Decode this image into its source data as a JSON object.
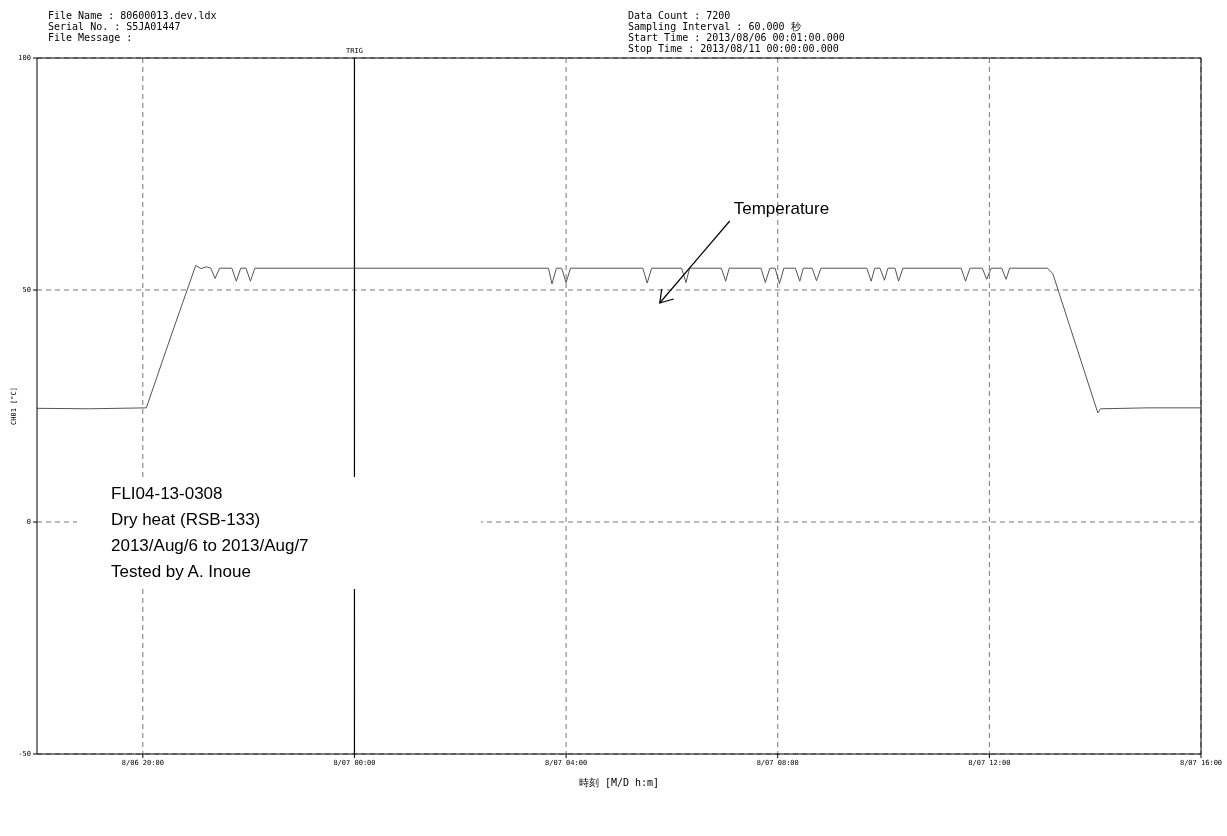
{
  "chart_data": {
    "type": "line",
    "xlabel": "時刻 [M/D h:m]",
    "ylabel": "CH01 [°C]",
    "xlim": [
      "2013-08-06T18:00",
      "2013-08-07T16:00"
    ],
    "xticks": [
      {
        "value": "2013-08-06T20:00",
        "label": "8/06 20:00"
      },
      {
        "value": "2013-08-07T00:00",
        "label": "8/07 00:00"
      },
      {
        "value": "2013-08-07T04:00",
        "label": "8/07 04:00"
      },
      {
        "value": "2013-08-07T08:00",
        "label": "8/07 08:00"
      },
      {
        "value": "2013-08-07T12:00",
        "label": "8/07 12:00"
      },
      {
        "value": "2013-08-07T16:00",
        "label": "8/07 16:00"
      }
    ],
    "ylim": [
      -50,
      100
    ],
    "yticks": [
      -50,
      0,
      50,
      100
    ],
    "grid": true,
    "line_style": "solid",
    "marker": "none",
    "ref_lines": [
      {
        "axis": "x",
        "value": "2013-08-07T00:00",
        "label": "TRIG",
        "color": "#000000",
        "line_style": "solid"
      }
    ],
    "annotations": [
      "File Name : 80600013.dev.ldx",
      "Serial No. : S5JA01447",
      "File Message :",
      "Data Count : 7200",
      "Sampling Interval : 60.000 秒",
      "Start Time : 2013/08/06 00:01:00.000",
      "Stop Time : 2013/08/11 00:00:00.000",
      "FLI04-13-0308",
      "Dry heat (RSB-133)",
      "2013/Aug/6 to 2013/Aug/7",
      "Tested by A. Inoue",
      "Temperature"
    ],
    "series": [
      {
        "color": "#555555",
        "x": [
          "2013-08-06T18:00",
          "2013-08-06T19:00",
          "2013-08-06T20:04",
          "2013-08-06T20:30",
          "2013-08-06T21:00",
          "2013-08-06T21:06",
          "2013-08-06T21:12",
          "2013-08-06T21:17",
          "2013-08-06T21:22",
          "2013-08-06T21:27",
          "2013-08-06T21:41",
          "2013-08-06T21:46",
          "2013-08-06T21:51",
          "2013-08-06T21:57",
          "2013-08-06T22:02",
          "2013-08-06T22:07",
          "2013-08-07T00:00",
          "2013-08-07T03:40",
          "2013-08-07T03:44",
          "2013-08-07T03:49",
          "2013-08-07T03:55",
          "2013-08-07T04:00",
          "2013-08-07T04:05",
          "2013-08-07T05:27",
          "2013-08-07T05:32",
          "2013-08-07T05:37",
          "2013-08-07T06:11",
          "2013-08-07T06:16",
          "2013-08-07T06:20",
          "2013-08-07T06:56",
          "2013-08-07T07:01",
          "2013-08-07T07:05",
          "2013-08-07T07:41",
          "2013-08-07T07:46",
          "2013-08-07T07:51",
          "2013-08-07T07:57",
          "2013-08-07T08:02",
          "2013-08-07T08:07",
          "2013-08-07T08:20",
          "2013-08-07T08:25",
          "2013-08-07T08:29",
          "2013-08-07T08:39",
          "2013-08-07T08:44",
          "2013-08-07T08:49",
          "2013-08-07T09:41",
          "2013-08-07T09:46",
          "2013-08-07T09:50",
          "2013-08-07T09:56",
          "2013-08-07T10:01",
          "2013-08-07T10:05",
          "2013-08-07T10:13",
          "2013-08-07T10:17",
          "2013-08-07T10:22",
          "2013-08-07T11:28",
          "2013-08-07T11:33",
          "2013-08-07T11:38",
          "2013-08-07T11:52",
          "2013-08-07T11:57",
          "2013-08-07T12:02",
          "2013-08-07T12:14",
          "2013-08-07T12:19",
          "2013-08-07T12:23",
          "2013-08-07T13:06",
          "2013-08-07T13:12",
          "2013-08-07T14:03",
          "2013-08-07T14:06",
          "2013-08-07T15:00",
          "2013-08-07T16:00"
        ],
        "values": [
          24.5,
          24.4,
          24.6,
          39,
          55.3,
          54.6,
          55,
          54.7,
          52.5,
          54.7,
          54.7,
          51.9,
          54.7,
          54.7,
          51.9,
          54.7,
          54.7,
          54.7,
          51.3,
          54.7,
          54.7,
          51.6,
          54.7,
          54.7,
          51.5,
          54.7,
          54.7,
          51.6,
          54.7,
          54.7,
          51.9,
          54.7,
          54.7,
          51.6,
          54.7,
          54.7,
          51.4,
          54.7,
          54.7,
          51.9,
          54.7,
          54.7,
          52.0,
          54.7,
          54.7,
          51.9,
          54.7,
          54.7,
          52.1,
          54.7,
          54.7,
          51.9,
          54.7,
          54.7,
          51.9,
          54.7,
          54.7,
          52.3,
          54.7,
          54.7,
          52.3,
          54.7,
          54.7,
          53.5,
          23.5,
          24.4,
          24.6,
          24.6
        ]
      }
    ]
  }
}
